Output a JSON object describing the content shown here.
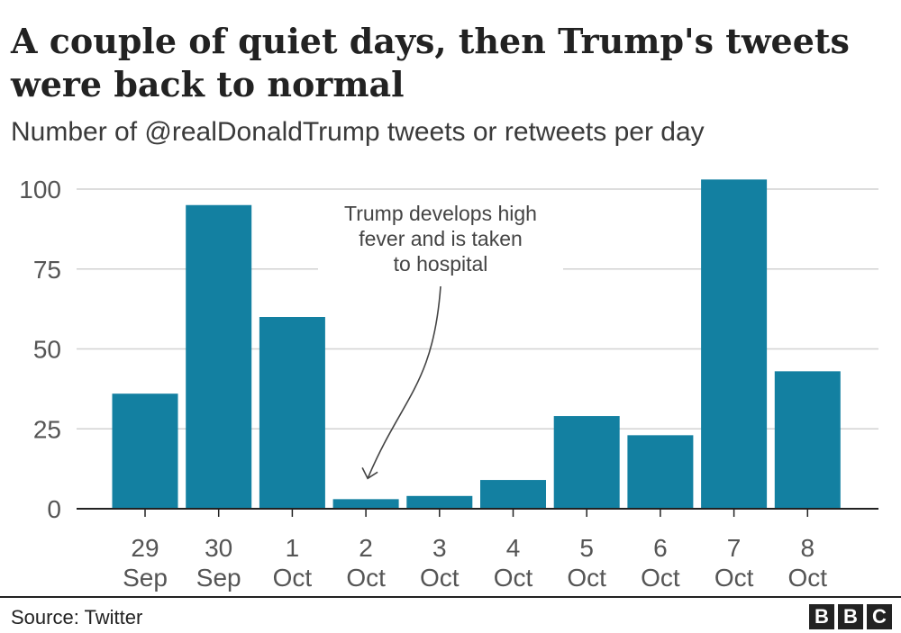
{
  "header": {
    "title": "A couple of quiet days, then Trump's tweets were back to normal",
    "subtitle": "Number of @realDonaldTrump tweets or retweets per day"
  },
  "footer": {
    "source": "Source: Twitter",
    "logo_letters": [
      "B",
      "B",
      "C"
    ]
  },
  "chart_data": {
    "type": "bar",
    "categories": [
      [
        "29",
        "Sep"
      ],
      [
        "30",
        "Sep"
      ],
      [
        "1",
        "Oct"
      ],
      [
        "2",
        "Oct"
      ],
      [
        "3",
        "Oct"
      ],
      [
        "4",
        "Oct"
      ],
      [
        "5",
        "Oct"
      ],
      [
        "6",
        "Oct"
      ],
      [
        "7",
        "Oct"
      ],
      [
        "8",
        "Oct"
      ]
    ],
    "values": [
      36,
      95,
      60,
      3,
      4,
      9,
      29,
      23,
      103,
      43
    ],
    "ylim": [
      0,
      105
    ],
    "yticks": [
      0,
      25,
      50,
      75,
      100
    ],
    "grid": true,
    "bar_color": "#1380a1",
    "annotation": {
      "lines": [
        "Trump develops high",
        "fever and is taken",
        "to hospital"
      ],
      "target_category_index": 3
    }
  }
}
